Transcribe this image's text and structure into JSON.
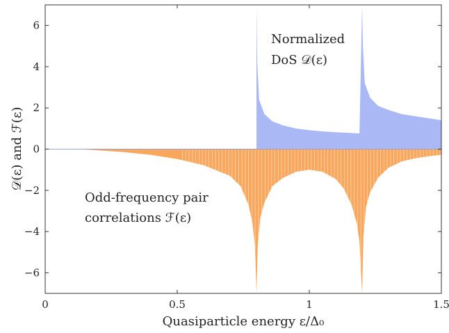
{
  "chart_data": {
    "type": "area",
    "xlabel": "Quasiparticle energy ε/Δ₀",
    "ylabel": "𝒟(ε) and ℱ(ε)",
    "xlim": [
      0,
      1.5
    ],
    "ylim": [
      -7,
      7
    ],
    "x_ticks": [
      "0",
      "0.5",
      "1",
      "1.5"
    ],
    "y_ticks": [
      "−6",
      "−4",
      "−2",
      "0",
      "2",
      "4",
      "6"
    ],
    "grid": false,
    "annotations": [
      {
        "lines": [
          "Normalized",
          "DoS 𝒟(ε)"
        ]
      },
      {
        "lines": [
          "Odd-frequency pair",
          "correlations ℱ(ε)"
        ]
      }
    ],
    "series": [
      {
        "color": "#aab8f5",
        "x": [
          0.8,
          0.803,
          0.81,
          0.83,
          0.86,
          0.9,
          0.95,
          1.0,
          1.05,
          1.1,
          1.15,
          1.19,
          1.2,
          1.203,
          1.21,
          1.23,
          1.26,
          1.3,
          1.35,
          1.4,
          1.45,
          1.5
        ],
        "values": [
          7.0,
          4.2,
          2.4,
          1.7,
          1.35,
          1.15,
          1.0,
          0.92,
          0.86,
          0.82,
          0.79,
          0.76,
          7.0,
          5.0,
          3.2,
          2.5,
          2.1,
          1.9,
          1.7,
          1.6,
          1.5,
          1.4
        ]
      },
      {
        "color": "#f8a75c",
        "x": [
          0.0,
          0.15,
          0.2,
          0.3,
          0.4,
          0.5,
          0.6,
          0.7,
          0.74,
          0.77,
          0.785,
          0.795,
          0.8,
          0.805,
          0.815,
          0.83,
          0.86,
          0.9,
          0.95,
          1.0,
          1.05,
          1.1,
          1.13,
          1.16,
          1.18,
          1.19,
          1.2,
          1.205,
          1.215,
          1.23,
          1.26,
          1.3,
          1.35,
          1.4,
          1.45,
          1.5
        ],
        "values": [
          0.0,
          -0.02,
          -0.06,
          -0.15,
          -0.28,
          -0.48,
          -0.78,
          -1.3,
          -1.8,
          -2.7,
          -3.6,
          -4.8,
          -7.0,
          -4.6,
          -3.3,
          -2.6,
          -1.8,
          -1.4,
          -1.1,
          -1.0,
          -1.1,
          -1.45,
          -1.9,
          -2.7,
          -3.6,
          -4.5,
          -7.0,
          -4.2,
          -2.8,
          -2.1,
          -1.4,
          -0.9,
          -0.6,
          -0.45,
          -0.35,
          -0.28
        ]
      }
    ]
  }
}
